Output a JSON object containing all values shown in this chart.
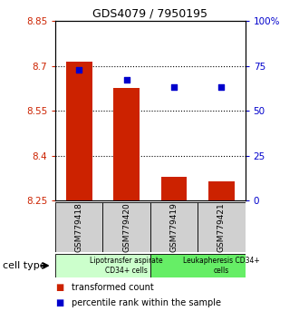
{
  "title": "GDS4079 / 7950195",
  "samples": [
    "GSM779418",
    "GSM779420",
    "GSM779419",
    "GSM779421"
  ],
  "transformed_counts": [
    8.714,
    8.625,
    8.33,
    8.315
  ],
  "percentile_ranks": [
    73.0,
    67.0,
    63.0,
    63.0
  ],
  "ylim_left": [
    8.25,
    8.85
  ],
  "ylim_right": [
    0,
    100
  ],
  "yticks_left": [
    8.25,
    8.4,
    8.55,
    8.7,
    8.85
  ],
  "yticks_right": [
    0,
    25,
    50,
    75,
    100
  ],
  "ytick_labels_left": [
    "8.25",
    "8.4",
    "8.55",
    "8.7",
    "8.85"
  ],
  "ytick_labels_right": [
    "0",
    "25",
    "50",
    "75",
    "100%"
  ],
  "hlines": [
    8.4,
    8.55,
    8.7
  ],
  "bar_color": "#cc2200",
  "dot_color": "#0000cc",
  "bar_bottom": 8.25,
  "cell_type_groups": [
    {
      "label": "Lipotransfer aspirate\nCD34+ cells",
      "start": 0,
      "end": 2,
      "color": "#ccffcc"
    },
    {
      "label": "Leukapheresis CD34+\ncells",
      "start": 2,
      "end": 4,
      "color": "#66ee66"
    }
  ],
  "cell_type_label": "cell type",
  "legend_entries": [
    {
      "color": "#cc2200",
      "label": "transformed count"
    },
    {
      "color": "#0000cc",
      "label": "percentile rank within the sample"
    }
  ],
  "bar_width": 0.55,
  "background_color": "#ffffff",
  "plot_bg_color": "#ffffff",
  "tick_label_color_left": "#cc2200",
  "tick_label_color_right": "#0000cc",
  "sample_box_color": "#d0d0d0",
  "title_fontsize": 9
}
